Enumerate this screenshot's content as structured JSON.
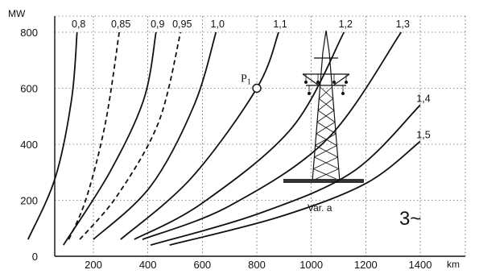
{
  "chart_data": {
    "type": "line",
    "title": "",
    "xlabel": "",
    "ylabel": "",
    "x_unit": "km",
    "y_unit": "MW",
    "xlim": [
      0,
      1500
    ],
    "ylim": [
      0,
      800
    ],
    "x_ticks": [
      "200",
      "400",
      "600",
      "800",
      "1000",
      "1200",
      "1400"
    ],
    "y_ticks": [
      "0",
      "200",
      "400",
      "600",
      "800"
    ],
    "grid": true,
    "series": [
      {
        "name": "0,8",
        "style": "solid",
        "points": [
          [
            -40,
            60
          ],
          [
            60,
            280
          ],
          [
            120,
            560
          ],
          [
            140,
            800
          ]
        ]
      },
      {
        "name": "0,85",
        "style": "dashed",
        "points": [
          [
            110,
            60
          ],
          [
            175,
            210
          ],
          [
            245,
            480
          ],
          [
            295,
            800
          ]
        ]
      },
      {
        "name": "0,9",
        "style": "solid",
        "points": [
          [
            90,
            40
          ],
          [
            260,
            300
          ],
          [
            385,
            560
          ],
          [
            430,
            800
          ]
        ]
      },
      {
        "name": "0,95",
        "style": "dashed",
        "points": [
          [
            150,
            60
          ],
          [
            290,
            220
          ],
          [
            440,
            480
          ],
          [
            520,
            800
          ]
        ]
      },
      {
        "name": "1,0",
        "style": "solid",
        "points": [
          [
            200,
            60
          ],
          [
            410,
            250
          ],
          [
            570,
            540
          ],
          [
            650,
            800
          ]
        ]
      },
      {
        "name": "1,1",
        "style": "solid",
        "points": [
          [
            300,
            60
          ],
          [
            560,
            280
          ],
          [
            800,
            600
          ],
          [
            880,
            800
          ]
        ]
      },
      {
        "name": "1,2",
        "style": "solid",
        "points": [
          [
            350,
            60
          ],
          [
            600,
            190
          ],
          [
            930,
            460
          ],
          [
            1120,
            800
          ]
        ]
      },
      {
        "name": "1,3",
        "style": "solid",
        "points": [
          [
            380,
            60
          ],
          [
            700,
            180
          ],
          [
            1060,
            420
          ],
          [
            1330,
            800
          ]
        ]
      },
      {
        "name": "1,4",
        "style": "solid",
        "points": [
          [
            410,
            40
          ],
          [
            800,
            150
          ],
          [
            1150,
            300
          ],
          [
            1400,
            540
          ]
        ]
      },
      {
        "name": "1,5",
        "style": "solid",
        "points": [
          [
            480,
            40
          ],
          [
            880,
            140
          ],
          [
            1200,
            260
          ],
          [
            1400,
            410
          ]
        ]
      }
    ],
    "annotations": [
      {
        "label": "P",
        "subscript": "1",
        "x": 800,
        "y": 600
      },
      {
        "label": "Var. a",
        "x": 1000,
        "y": 250
      },
      {
        "label": "3~"
      }
    ]
  }
}
